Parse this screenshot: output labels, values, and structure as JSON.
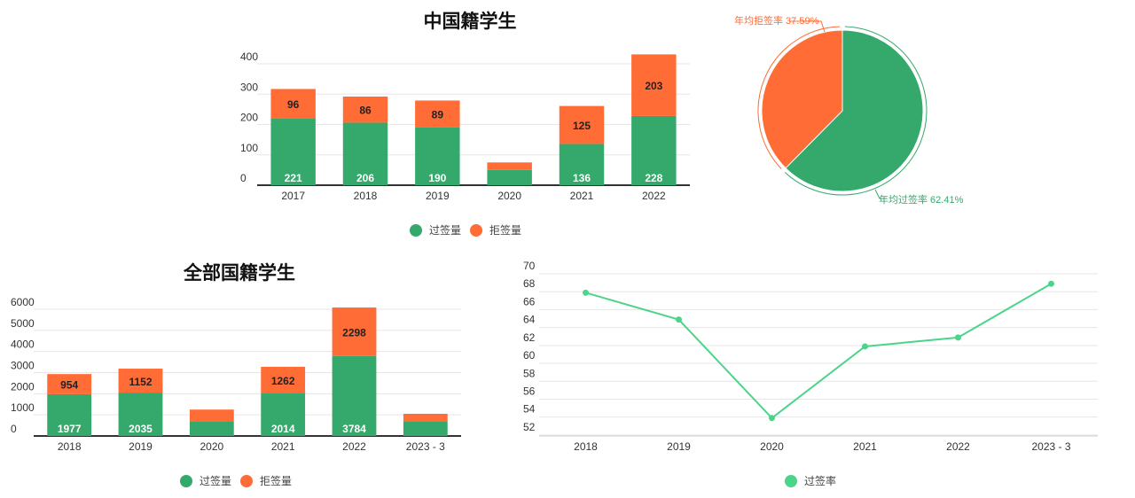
{
  "colors": {
    "green": "#35A96B",
    "orange": "#FF6C35",
    "line": "#4CD48A",
    "axis": "#333333",
    "grid": "#e6e6e6"
  },
  "chart_data": [
    {
      "id": "china-bar",
      "type": "bar",
      "stacked": true,
      "title": "中国籍学生",
      "categories": [
        "2017",
        "2018",
        "2019",
        "2020",
        "2021",
        "2022"
      ],
      "series": [
        {
          "name": "过签量",
          "values": [
            221,
            206,
            190,
            50,
            136,
            228
          ],
          "labels": [
            "221",
            "206",
            "190",
            "",
            "136",
            "228"
          ]
        },
        {
          "name": "拒签量",
          "values": [
            96,
            86,
            89,
            25,
            125,
            203
          ],
          "labels": [
            "96",
            "86",
            "89",
            "",
            "125",
            "203"
          ]
        }
      ],
      "yticks": [
        0,
        100,
        200,
        300,
        400
      ],
      "ylim": [
        0,
        400
      ],
      "legend": "bottom"
    },
    {
      "id": "china-pie",
      "type": "pie",
      "slices": [
        {
          "name": "年均过签率",
          "value": 62.41,
          "label": "年均过签率 62.41%"
        },
        {
          "name": "年均拒签率",
          "value": 37.59,
          "label": "年均拒签率 37.59%"
        }
      ]
    },
    {
      "id": "all-bar",
      "type": "bar",
      "stacked": true,
      "title": "全部国籍学生",
      "categories": [
        "2018",
        "2019",
        "2020",
        "2021",
        "2022",
        "2023 - 3"
      ],
      "series": [
        {
          "name": "过签量",
          "values": [
            1977,
            2035,
            700,
            2014,
            3784,
            700
          ],
          "labels": [
            "1977",
            "2035",
            "",
            "2014",
            "3784",
            ""
          ]
        },
        {
          "name": "拒签量",
          "values": [
            954,
            1152,
            550,
            1262,
            2298,
            350
          ],
          "labels": [
            "954",
            "1152",
            "",
            "1262",
            "2298",
            ""
          ]
        }
      ],
      "yticks": [
        0,
        1000,
        2000,
        3000,
        4000,
        5000,
        6000
      ],
      "ylim": [
        0,
        6000
      ],
      "legend": "bottom"
    },
    {
      "id": "rate-line",
      "type": "line",
      "categories": [
        "2018",
        "2019",
        "2020",
        "2021",
        "2022",
        "2023 - 3"
      ],
      "series": [
        {
          "name": "过签率",
          "values": [
            67,
            64,
            53,
            61,
            62,
            68
          ]
        }
      ],
      "yticks": [
        52,
        54,
        56,
        58,
        60,
        62,
        64,
        66,
        68,
        70
      ],
      "ylim": [
        51,
        70
      ],
      "legend": "bottom"
    }
  ]
}
